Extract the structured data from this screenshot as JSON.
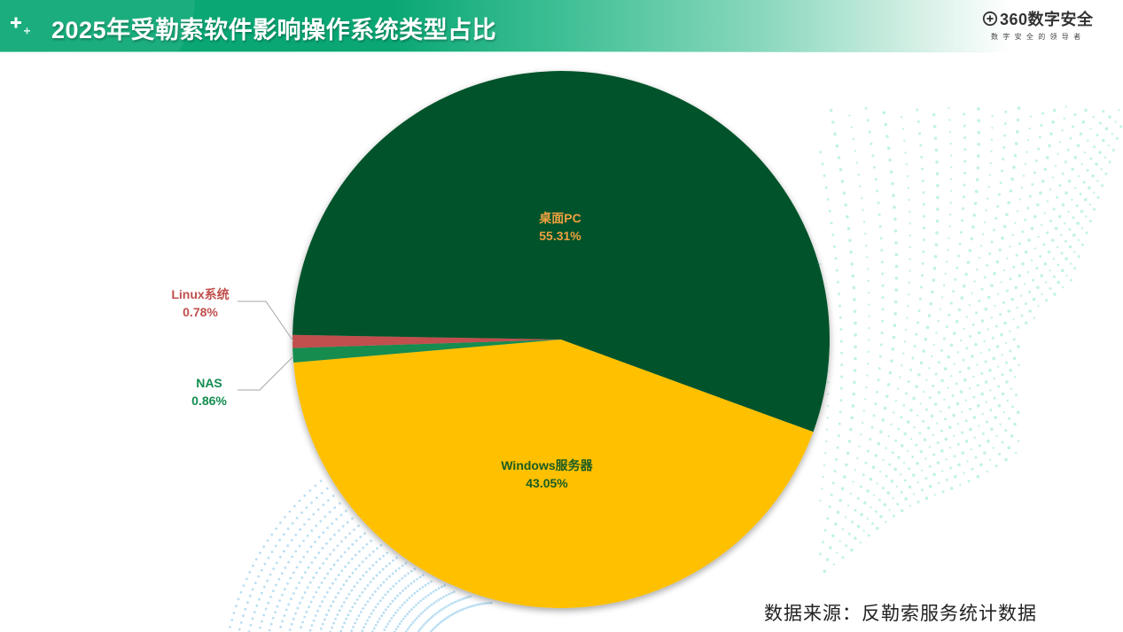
{
  "header": {
    "title": "2025年受勒索软件影响操作系统类型占比",
    "icon": "plus-sparkle-icon"
  },
  "logo": {
    "brand": "360数字安全",
    "slogan": "数字安全的领导者",
    "icon": "plus-circle-logo-icon"
  },
  "source": "数据来源：反勒索服务统计数据",
  "colors": {
    "header_green": "#0aa774",
    "desktop_pc": "#05522b",
    "windows_server": "#ffc000",
    "nas": "#128c50",
    "linux": "#c0504d",
    "label_desktop": "#f0a040",
    "label_windows": "#1a5c22",
    "label_nas": "#128c50",
    "label_linux": "#c0504d"
  },
  "chart_data": {
    "type": "pie",
    "title": "2025年受勒索软件影响操作系统类型占比",
    "categories": [
      "桌面PC",
      "Windows服务器",
      "NAS",
      "Linux系统"
    ],
    "values": [
      55.31,
      43.05,
      0.86,
      0.78
    ],
    "unit": "%",
    "labels": [
      {
        "name": "桌面PC",
        "pct": "55.31%"
      },
      {
        "name": "Windows服务器",
        "pct": "43.05%"
      },
      {
        "name": "NAS",
        "pct": "0.86%"
      },
      {
        "name": "Linux系统",
        "pct": "0.78%"
      }
    ],
    "legend": "none",
    "data_labels": true,
    "source": "数据来源：反勒索服务统计数据"
  }
}
